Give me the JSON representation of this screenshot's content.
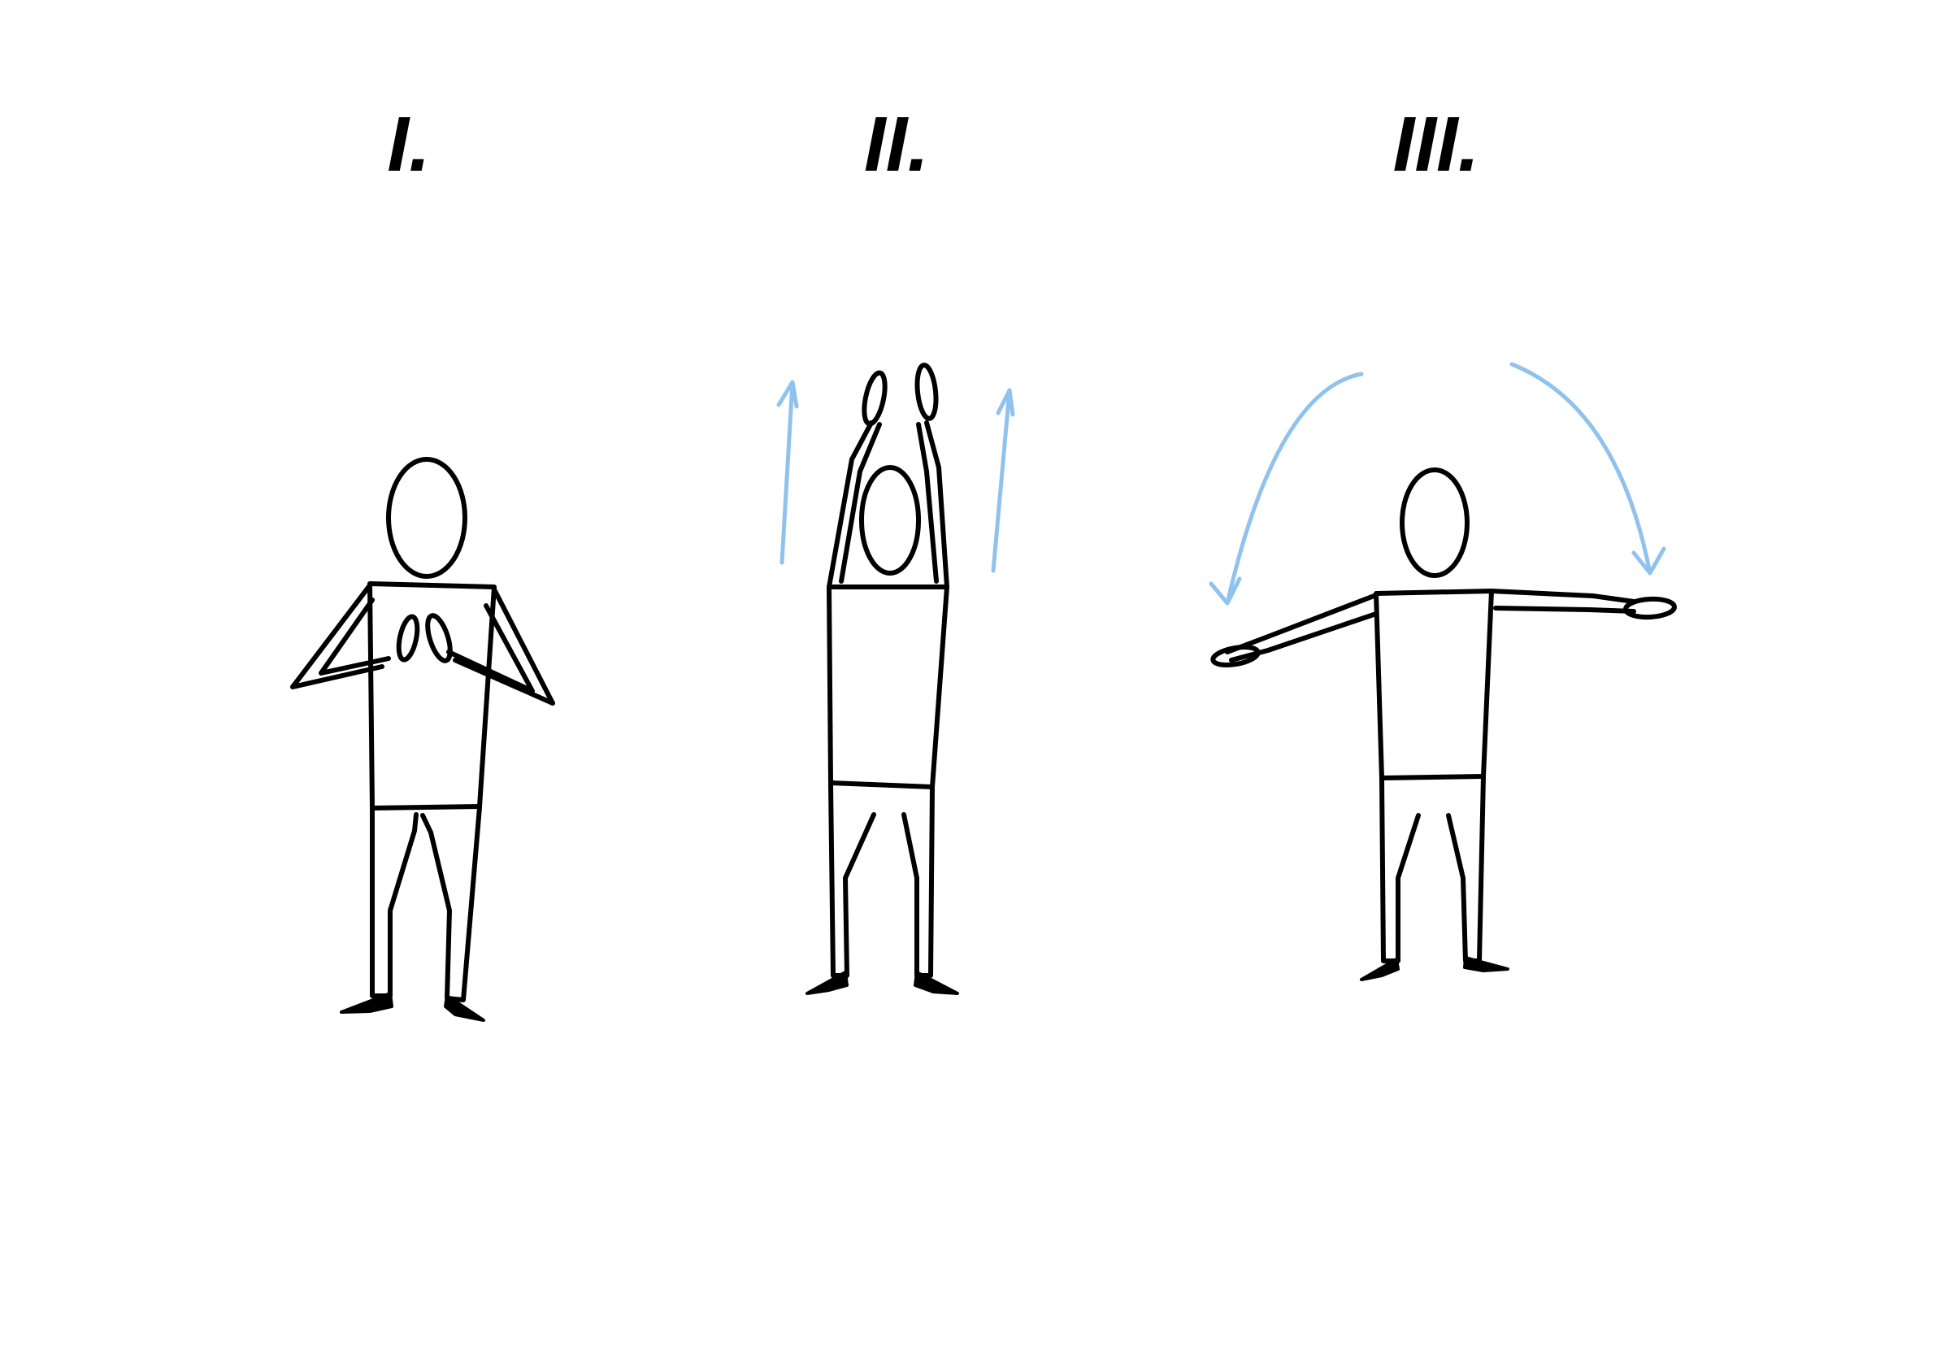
{
  "steps": [
    {
      "label": "I.",
      "pose": "hands-together-at-chest"
    },
    {
      "label": "II.",
      "pose": "arms-raised-overhead",
      "motion": "up"
    },
    {
      "label": "III.",
      "pose": "arms-extended-sideways",
      "motion": "arc-down"
    }
  ],
  "colors": {
    "ink": "#000000",
    "accent": "#90c2ee",
    "background": "#ffffff"
  }
}
